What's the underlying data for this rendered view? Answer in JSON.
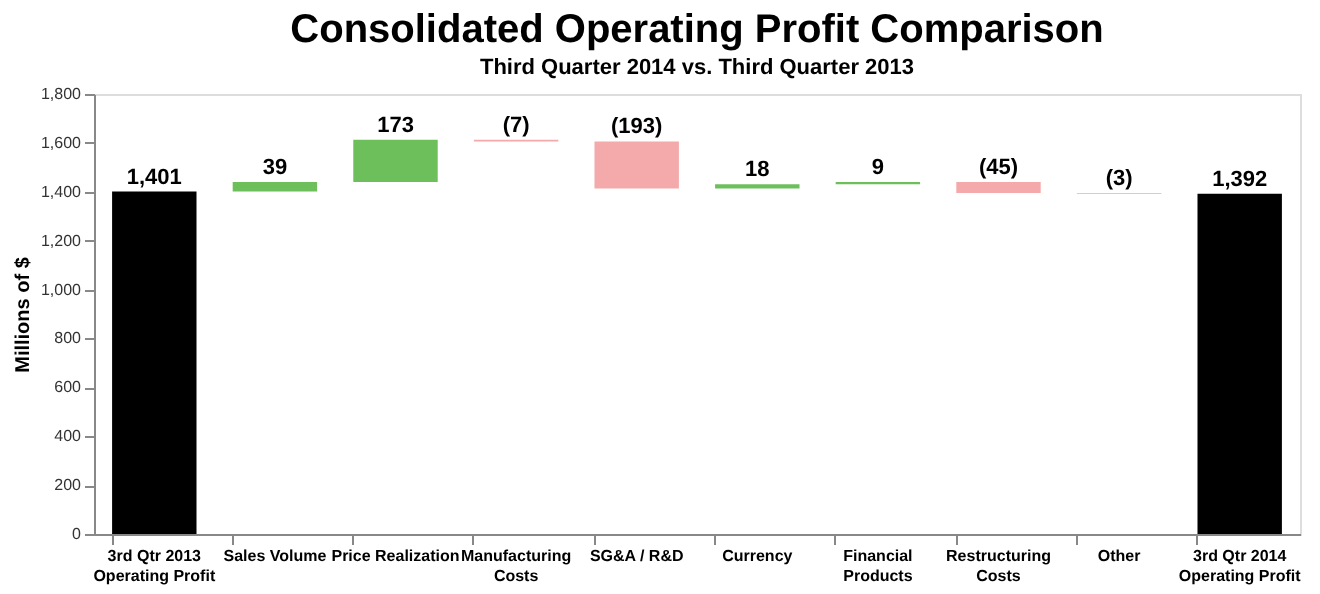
{
  "chart_data": {
    "type": "bar",
    "title": "Consolidated Operating Profit Comparison",
    "subtitle": "Third Quarter 2014 vs. Third Quarter 2013",
    "ylabel": "Millions of $",
    "categories": [
      "3rd Qtr 2013\nOperating Profit",
      "Sales Volume",
      "Price Realization",
      "Manufacturing\nCosts",
      "SG&A / R&D",
      "Currency",
      "Financial\nProducts",
      "Restructuring\nCosts",
      "Other",
      "3rd Qtr 2014\nOperating Profit"
    ],
    "values": [
      1401,
      39,
      173,
      -7,
      -193,
      18,
      9,
      -45,
      -3,
      1392
    ],
    "base": [
      0,
      1401,
      1440,
      1613,
      1606,
      1413,
      1431,
      1440,
      1395,
      0
    ],
    "colors": [
      "#000000",
      "#6cbf5a",
      "#6cbf5a",
      "#f4aaaa",
      "#f4aaaa",
      "#6cbf5a",
      "#6cbf5a",
      "#f4aaaa",
      "#f4aaaa",
      "#000000"
    ],
    "value_labels": [
      "1,401",
      "39",
      "173",
      "(7)",
      "(193)",
      "18",
      "9",
      "(45)",
      "(3)",
      "1,392"
    ],
    "ylim": [
      0,
      1800
    ],
    "yticks": [
      0,
      200,
      400,
      600,
      800,
      {
        "value": 1000,
        "label": "1,000"
      },
      {
        "value": 1200,
        "label": "1,200"
      },
      {
        "value": 1400,
        "label": "1,400"
      },
      {
        "value": 1600,
        "label": "1,600"
      },
      {
        "value": 1800,
        "label": "1,800"
      }
    ],
    "grid": false
  }
}
